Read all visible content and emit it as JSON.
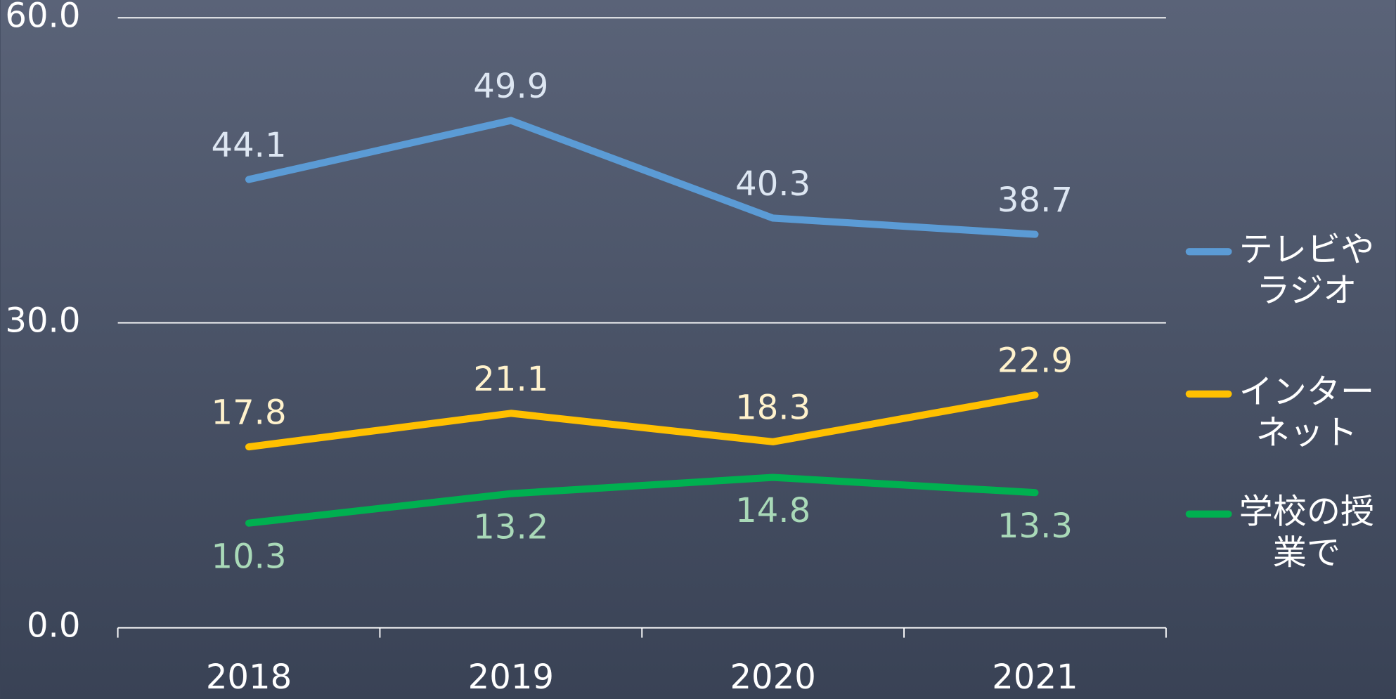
{
  "chart_data": {
    "type": "line",
    "categories": [
      "2018",
      "2019",
      "2020",
      "2021"
    ],
    "series": [
      {
        "name": "テレビやラジオ",
        "color": "#5b9bd5",
        "label_color": "#dde6f2",
        "values": [
          44.1,
          49.9,
          40.3,
          38.7
        ]
      },
      {
        "name": "インターネット",
        "color": "#ffc000",
        "label_color": "#fff2cc",
        "values": [
          17.8,
          21.1,
          18.3,
          22.9
        ]
      },
      {
        "name": "学校の授業で",
        "color": "#00b050",
        "label_color": "#a9d9b8",
        "values": [
          10.3,
          13.2,
          14.8,
          13.3
        ]
      }
    ],
    "ylim": [
      0,
      60
    ],
    "yticks": [
      {
        "value": 0,
        "label": "0.0"
      },
      {
        "value": 30,
        "label": "30.0"
      },
      {
        "value": 60,
        "label": "60.0"
      }
    ],
    "grid": true,
    "legend": "right"
  }
}
